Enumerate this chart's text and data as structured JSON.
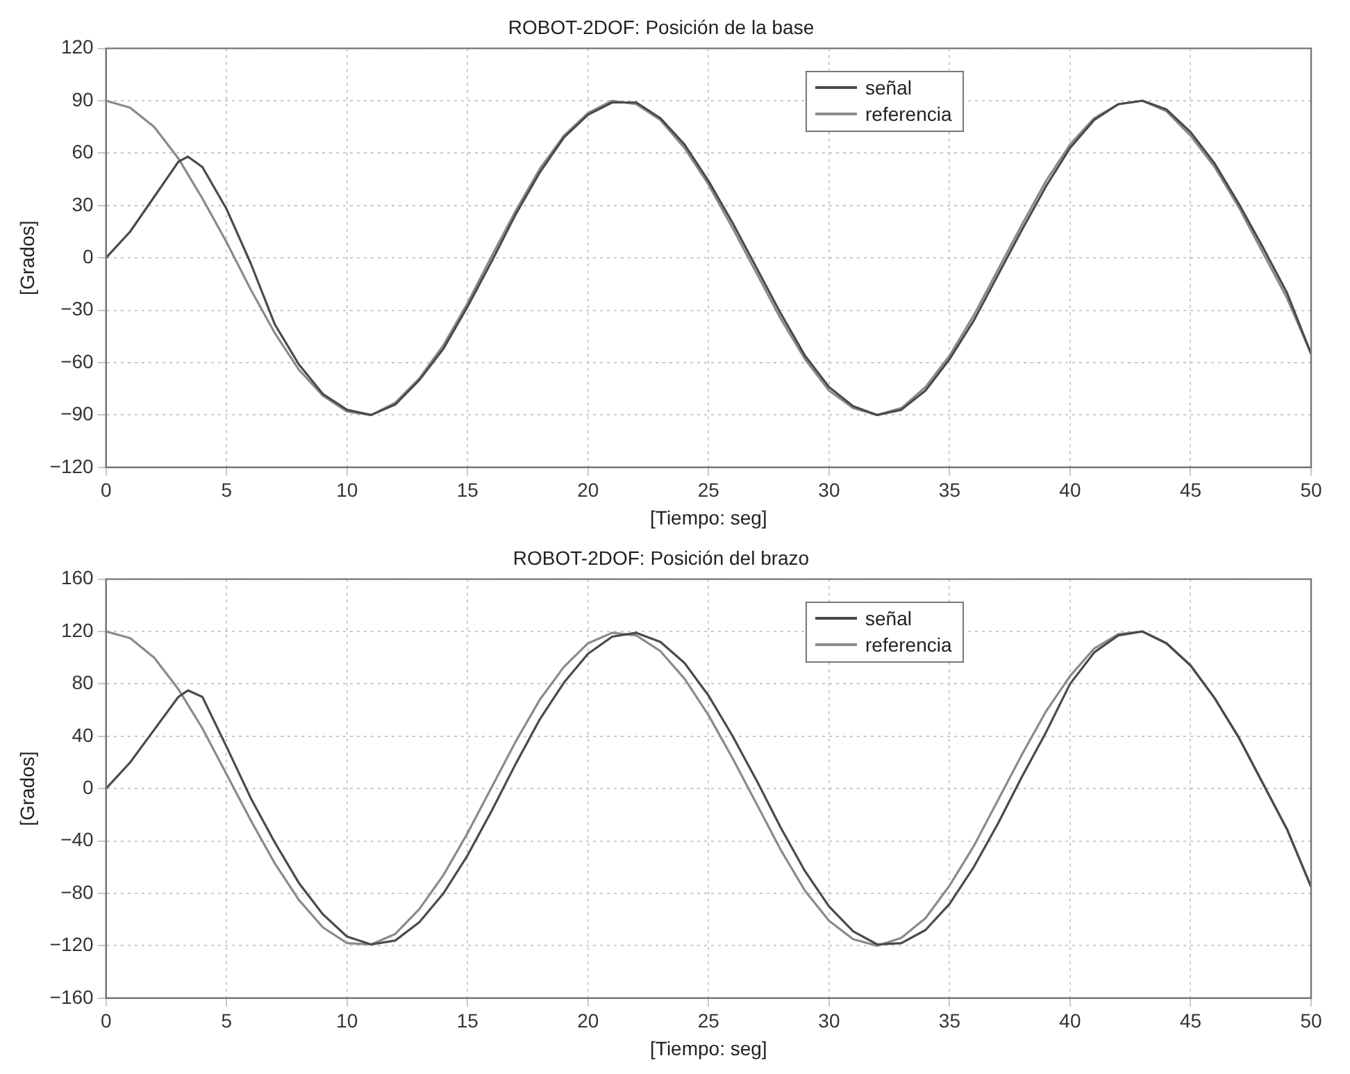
{
  "chart_data": [
    {
      "type": "line",
      "title": "ROBOT-2DOF: Posición de la base",
      "xlabel": "[Tiempo: seg]",
      "ylabel": "[Grados]",
      "xlim": [
        0,
        50
      ],
      "ylim": [
        -120,
        120
      ],
      "xticks": [
        0,
        5,
        10,
        15,
        20,
        25,
        30,
        35,
        40,
        45,
        50
      ],
      "yticks": [
        -120,
        -90,
        -60,
        -30,
        0,
        30,
        60,
        90,
        120
      ],
      "grid": true,
      "legend": "top right",
      "marker": "none",
      "line_style": "solid",
      "series": [
        {
          "name": "señal",
          "color": "#4a4a4a",
          "x": [
            0,
            1,
            2,
            3,
            3.4,
            4,
            5,
            6,
            7,
            8,
            9,
            10,
            11,
            12,
            13,
            14,
            15,
            16,
            17,
            18,
            19,
            20,
            21,
            22,
            23,
            24,
            25,
            26,
            27,
            28,
            29,
            30,
            31,
            32,
            33,
            34,
            35,
            36,
            37,
            38,
            39,
            40,
            41,
            42,
            43,
            44,
            45,
            46,
            47,
            48,
            49,
            50
          ],
          "values": [
            0,
            15,
            35,
            55,
            58,
            52,
            28,
            -3,
            -38,
            -61,
            -78,
            -87,
            -90,
            -84,
            -70,
            -52,
            -28,
            -2,
            25,
            49,
            69,
            82,
            89,
            89,
            80,
            65,
            44,
            20,
            -6,
            -32,
            -56,
            -74,
            -85,
            -90,
            -87,
            -76,
            -58,
            -36,
            -10,
            16,
            41,
            63,
            79,
            88,
            90,
            85,
            72,
            54,
            31,
            6,
            -20,
            -55
          ]
        },
        {
          "name": "referencia",
          "color": "#8a8a8a",
          "x": [
            0,
            1,
            2,
            3,
            4,
            5,
            6,
            7,
            8,
            9,
            10,
            11,
            12,
            13,
            14,
            15,
            16,
            17,
            18,
            19,
            20,
            21,
            22,
            23,
            24,
            25,
            26,
            27,
            28,
            29,
            30,
            31,
            32,
            33,
            34,
            35,
            36,
            37,
            38,
            39,
            40,
            41,
            42,
            43,
            44,
            45,
            46,
            47,
            48,
            49,
            50
          ],
          "values": [
            90,
            86,
            75,
            57,
            34,
            9,
            -18,
            -43,
            -64,
            -79,
            -88,
            -90,
            -83,
            -69,
            -50,
            -26,
            1,
            27,
            51,
            70,
            83,
            90,
            88,
            79,
            63,
            42,
            17,
            -9,
            -35,
            -58,
            -76,
            -86,
            -90,
            -86,
            -74,
            -56,
            -33,
            -7,
            19,
            44,
            65,
            80,
            88,
            90,
            84,
            70,
            52,
            29,
            3,
            -23,
            -55
          ]
        }
      ]
    },
    {
      "type": "line",
      "title": "ROBOT-2DOF: Posición del brazo",
      "xlabel": "[Tiempo: seg]",
      "ylabel": "[Grados]",
      "xlim": [
        0,
        50
      ],
      "ylim": [
        -160,
        160
      ],
      "xticks": [
        0,
        5,
        10,
        15,
        20,
        25,
        30,
        35,
        40,
        45,
        50
      ],
      "yticks": [
        -160,
        -120,
        -80,
        -40,
        0,
        40,
        80,
        120,
        160
      ],
      "grid": true,
      "legend": "top right",
      "marker": "none",
      "line_style": "solid",
      "series": [
        {
          "name": "señal",
          "color": "#4a4a4a",
          "x": [
            0,
            1,
            2,
            3,
            3.4,
            4,
            5,
            6,
            7,
            8,
            9,
            10,
            11,
            12,
            13,
            14,
            15,
            16,
            17,
            18,
            19,
            20,
            21,
            22,
            23,
            24,
            25,
            26,
            27,
            28,
            29,
            30,
            31,
            32,
            33,
            34,
            35,
            36,
            37,
            38,
            39,
            40,
            41,
            42,
            43,
            44,
            45,
            46,
            47,
            48,
            49,
            50
          ],
          "values": [
            0,
            20,
            45,
            70,
            75,
            70,
            32,
            -7,
            -41,
            -72,
            -96,
            -113,
            -119,
            -116,
            -102,
            -80,
            -51,
            -17,
            19,
            53,
            81,
            103,
            116,
            119,
            112,
            96,
            71,
            40,
            6,
            -30,
            -63,
            -90,
            -109,
            -119,
            -118,
            -108,
            -88,
            -60,
            -27,
            9,
            43,
            80,
            104,
            117,
            120,
            111,
            94,
            69,
            39,
            4,
            -31,
            -75
          ]
        },
        {
          "name": "referencia",
          "color": "#8a8a8a",
          "x": [
            0,
            1,
            2,
            3,
            4,
            5,
            6,
            7,
            8,
            9,
            10,
            11,
            12,
            13,
            14,
            15,
            16,
            17,
            18,
            19,
            20,
            21,
            22,
            23,
            24,
            25,
            26,
            27,
            28,
            29,
            30,
            31,
            32,
            33,
            34,
            35,
            36,
            37,
            38,
            39,
            40,
            41,
            42,
            43,
            44,
            45,
            46,
            47,
            48,
            49,
            50
          ],
          "values": [
            120,
            115,
            100,
            76,
            46,
            11,
            -24,
            -57,
            -85,
            -106,
            -118,
            -119,
            -111,
            -92,
            -66,
            -34,
            1,
            36,
            68,
            93,
            111,
            119,
            117,
            105,
            84,
            56,
            23,
            -12,
            -47,
            -78,
            -101,
            -115,
            -120,
            -114,
            -99,
            -74,
            -44,
            -9,
            26,
            59,
            86,
            107,
            118,
            120,
            111,
            94,
            69,
            39,
            4,
            -31,
            -75
          ]
        }
      ]
    }
  ]
}
